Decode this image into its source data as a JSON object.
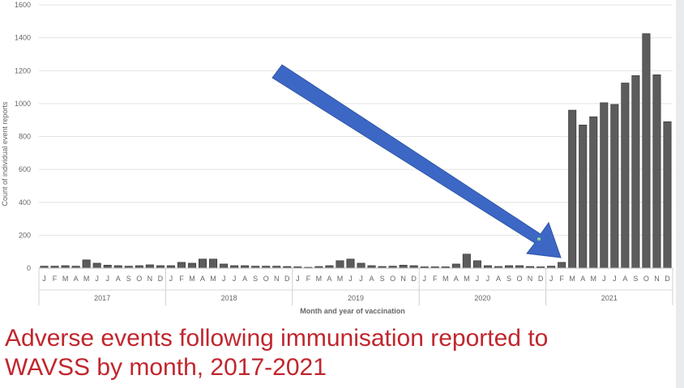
{
  "chart_data": {
    "type": "bar",
    "title": "",
    "ylabel": "Count of individual event reports",
    "xlabel": "Month and year of vaccination",
    "ylim": [
      0,
      1600
    ],
    "yticks": [
      0,
      200,
      400,
      600,
      800,
      1000,
      1200,
      1400,
      1600
    ],
    "grid": true,
    "month_labels": [
      "J",
      "F",
      "M",
      "A",
      "M",
      "J",
      "J",
      "A",
      "S",
      "O",
      "N",
      "D"
    ],
    "years": [
      "2017",
      "2018",
      "2019",
      "2020",
      "2021"
    ],
    "series": [
      {
        "values": [
          12,
          12,
          15,
          12,
          50,
          30,
          18,
          15,
          12,
          15,
          20,
          15,
          15,
          35,
          30,
          55,
          55,
          25,
          15,
          15,
          12,
          12,
          12,
          10,
          8,
          5,
          10,
          15,
          45,
          55,
          30,
          15,
          10,
          12,
          18,
          15,
          8,
          8,
          8,
          25,
          85,
          45,
          15,
          10,
          15,
          15,
          10,
          8,
          12,
          35,
          960,
          870,
          920,
          1005,
          995,
          1125,
          1170,
          1425,
          1175,
          890
        ]
      }
    ],
    "bar_color": "#5c5c5c",
    "arrow_color": "#3d67c4"
  },
  "caption": {
    "line1": "Adverse events following immunisation reported to",
    "line2": "WAVSS by month, 2017-2021"
  }
}
